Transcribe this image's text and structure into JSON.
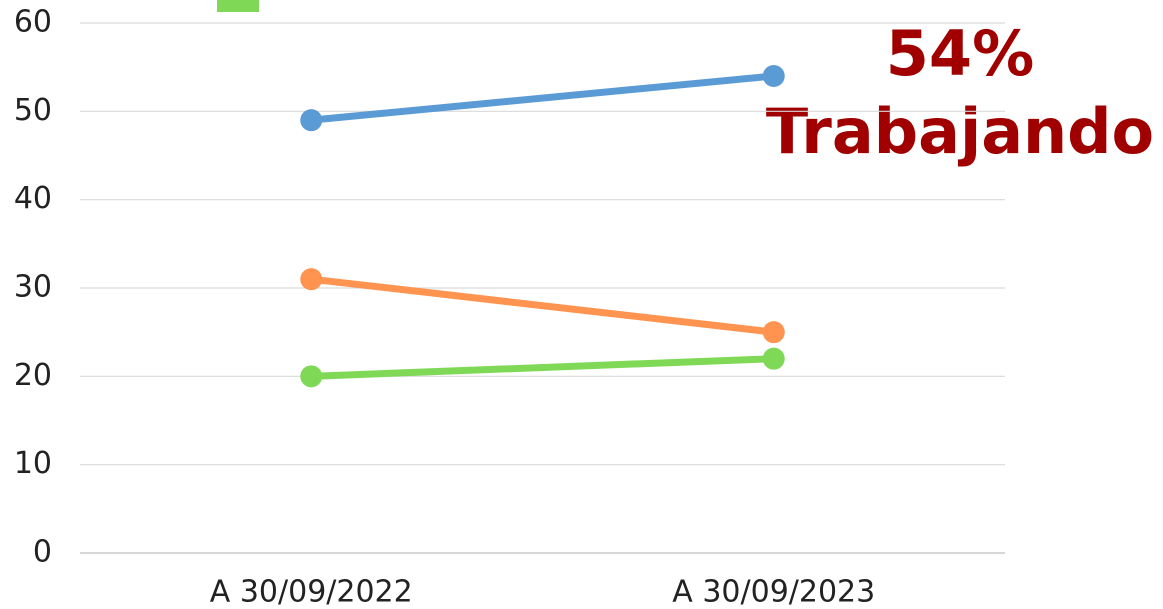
{
  "chart_data": {
    "type": "line",
    "categories": [
      "A 30/09/2022",
      "A 30/09/2023"
    ],
    "series": [
      {
        "color": "#5b9bd5",
        "values": [
          49,
          54
        ]
      },
      {
        "color": "#ff9450",
        "values": [
          31,
          25
        ]
      },
      {
        "color": "#7fd957",
        "values": [
          20,
          22
        ]
      }
    ],
    "ylim": [
      0,
      60
    ],
    "yticks": [
      0,
      10,
      20,
      30,
      40,
      50,
      60
    ],
    "grid": true,
    "annotations": [
      "54%",
      "Trabajando"
    ]
  }
}
